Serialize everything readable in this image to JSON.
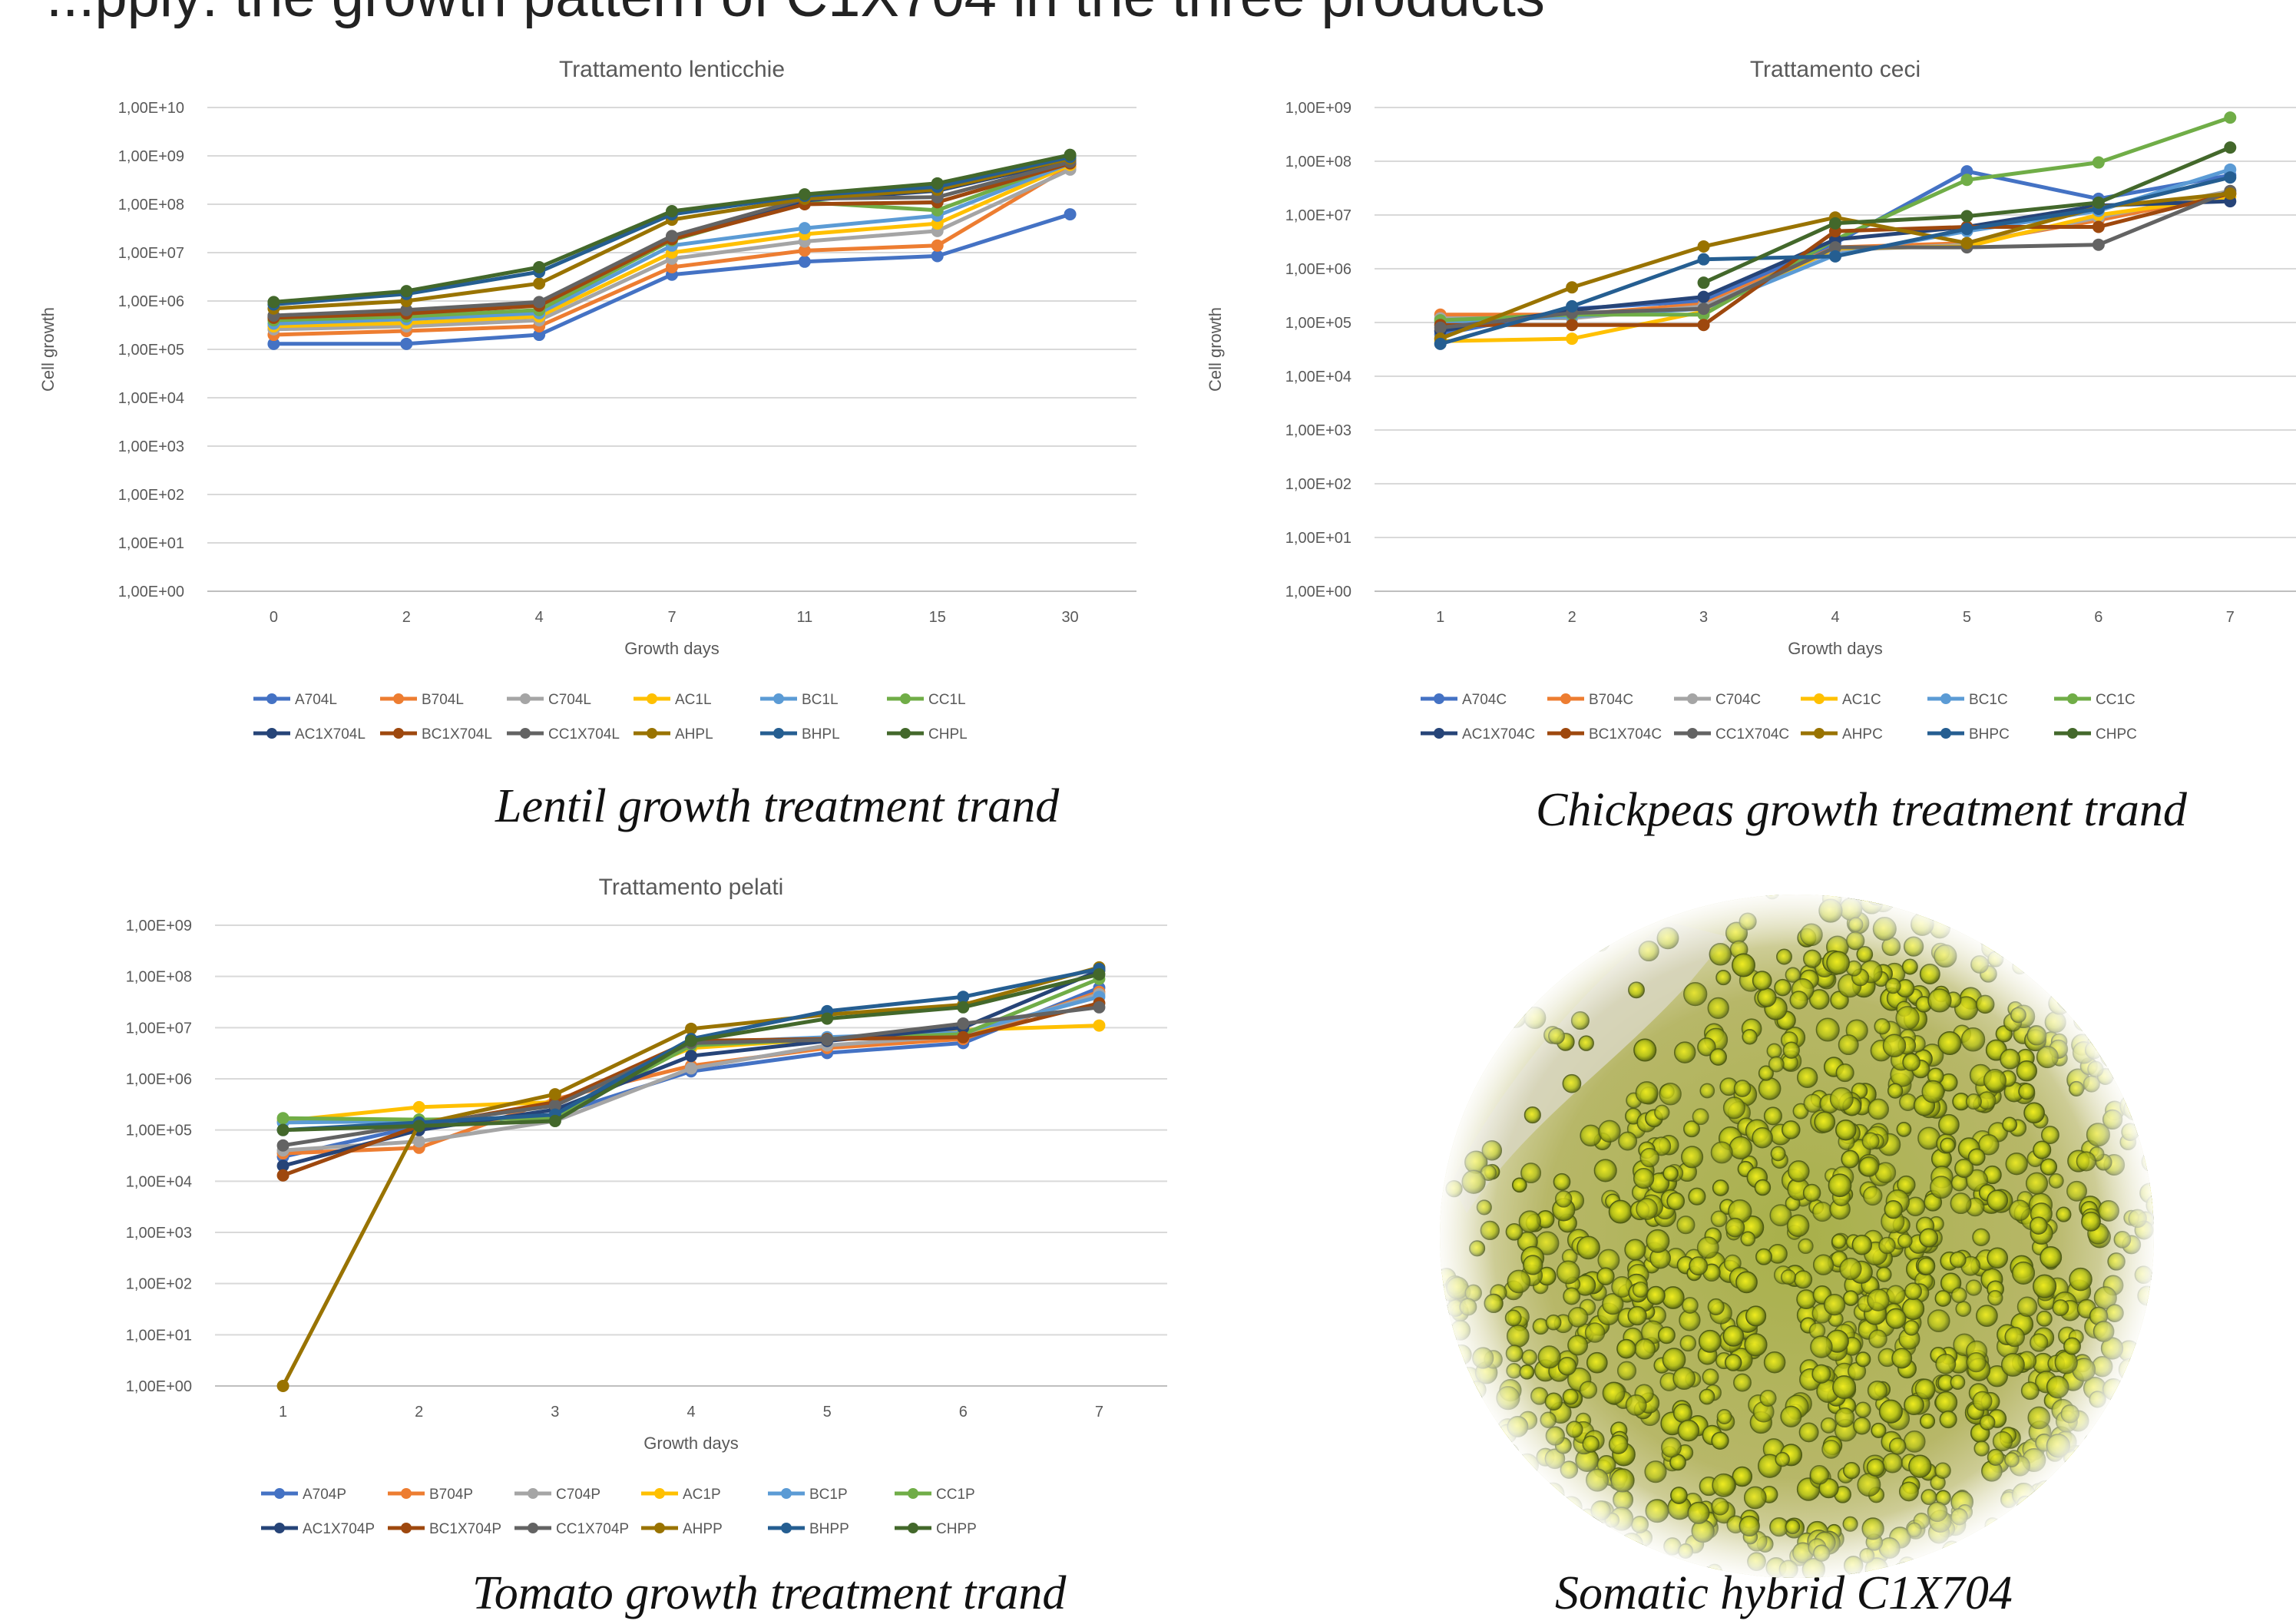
{
  "header": {
    "partial_title": "...pply: the growth pattern of C1X704 in the three products"
  },
  "captions": {
    "lentil": "Lentil growth treatment trand",
    "chickpeas": "Chickpeas growth treatment trand",
    "tomato": "Tomato growth treatment trand",
    "hybrid": "Somatic hybrid C1X704"
  },
  "palette": [
    "#4472c4",
    "#ed7d31",
    "#a5a5a5",
    "#ffc000",
    "#5b9bd5",
    "#70ad47",
    "#264478",
    "#9e480e",
    "#636363",
    "#997300",
    "#255e91",
    "#43682b"
  ],
  "chart_data": [
    {
      "id": "lentil",
      "type": "line",
      "title": "Trattamento lenticchie",
      "xlabel": "Growth days",
      "ylabel": "Cell growth",
      "y_scale": "log",
      "ylim": [
        1,
        10000000000
      ],
      "y_ticks": [
        "1,00E+00",
        "1,00E+01",
        "1,00E+02",
        "1,00E+03",
        "1,00E+04",
        "1,00E+05",
        "1,00E+06",
        "1,00E+07",
        "1,00E+08",
        "1,00E+09",
        "1,00E+10"
      ],
      "categories": [
        "0",
        "2",
        "4",
        "7",
        "11",
        "15",
        "30"
      ],
      "grid": true,
      "legend_position": "bottom",
      "series": [
        {
          "name": "A704L",
          "color": "#4472c4",
          "values": [
            130000,
            130000,
            200000,
            3500000,
            6500000,
            8500000,
            62000000
          ]
        },
        {
          "name": "B704L",
          "color": "#ed7d31",
          "values": [
            200000,
            240000,
            300000,
            5000000,
            11000000,
            14000000,
            600000000
          ]
        },
        {
          "name": "C704L",
          "color": "#a5a5a5",
          "values": [
            260000,
            300000,
            400000,
            7500000,
            17000000,
            28000000,
            520000000
          ]
        },
        {
          "name": "AC1L",
          "color": "#ffc000",
          "values": [
            300000,
            350000,
            480000,
            10000000,
            24000000,
            40000000,
            650000000
          ]
        },
        {
          "name": "BC1L",
          "color": "#5b9bd5",
          "values": [
            340000,
            420000,
            560000,
            14000000,
            32000000,
            58000000,
            700000000
          ]
        },
        {
          "name": "CC1L",
          "color": "#70ad47",
          "values": [
            400000,
            480000,
            650000,
            18000000,
            110000000,
            75000000,
            780000000
          ]
        },
        {
          "name": "AC1X704L",
          "color": "#264478",
          "values": [
            480000,
            600000,
            850000,
            20000000,
            120000000,
            190000000,
            820000000
          ]
        },
        {
          "name": "BC1X704L",
          "color": "#9e480e",
          "values": [
            450000,
            550000,
            800000,
            19000000,
            100000000,
            110000000,
            700000000
          ]
        },
        {
          "name": "CC1X704L",
          "color": "#636363",
          "values": [
            500000,
            650000,
            950000,
            22000000,
            130000000,
            140000000,
            750000000
          ]
        },
        {
          "name": "AHPL",
          "color": "#997300",
          "values": [
            700000,
            1000000,
            2300000,
            48000000,
            130000000,
            200000000,
            880000000
          ]
        },
        {
          "name": "BHPL",
          "color": "#255e91",
          "values": [
            850000,
            1400000,
            4000000,
            62000000,
            150000000,
            230000000,
            950000000
          ]
        },
        {
          "name": "CHPL",
          "color": "#43682b",
          "values": [
            950000,
            1600000,
            5000000,
            72000000,
            160000000,
            270000000,
            1050000000
          ]
        }
      ]
    },
    {
      "id": "chickpeas",
      "type": "line",
      "title": "Trattamento ceci",
      "xlabel": "Growth days",
      "ylabel": "Cell growth",
      "y_scale": "log",
      "ylim": [
        1,
        1000000000
      ],
      "y_ticks": [
        "1,00E+00",
        "1,00E+01",
        "1,00E+02",
        "1,00E+03",
        "1,00E+04",
        "1,00E+05",
        "1,00E+06",
        "1,00E+07",
        "1,00E+08",
        "1,00E+09"
      ],
      "categories": [
        "1",
        "2",
        "3",
        "4",
        "5",
        "6",
        "7"
      ],
      "grid": true,
      "legend_position": "bottom",
      "series": [
        {
          "name": "A704C",
          "color": "#4472c4",
          "values": [
            60000,
            180000,
            250000,
            3000000,
            65000000,
            20000000,
            55000000
          ]
        },
        {
          "name": "B704C",
          "color": "#ed7d31",
          "values": [
            140000,
            140000,
            220000,
            2500000,
            3000000,
            8000000,
            25000000
          ]
        },
        {
          "name": "C704C",
          "color": "#a5a5a5",
          "values": [
            120000,
            120000,
            200000,
            2200000,
            2800000,
            9000000,
            28000000
          ]
        },
        {
          "name": "AC1C",
          "color": "#ffc000",
          "values": [
            45000,
            50000,
            160000,
            2400000,
            2600000,
            10000000,
            22000000
          ]
        },
        {
          "name": "BC1C",
          "color": "#5b9bd5",
          "values": [
            100000,
            130000,
            180000,
            1800000,
            5000000,
            12000000,
            70000000
          ]
        },
        {
          "name": "CC1C",
          "color": "#70ad47",
          "values": [
            110000,
            140000,
            140000,
            3500000,
            45000000,
            95000000,
            650000000
          ]
        },
        {
          "name": "AC1X704C",
          "color": "#264478",
          "values": [
            70000,
            170000,
            300000,
            3500000,
            6000000,
            15000000,
            18000000
          ]
        },
        {
          "name": "BC1X704C",
          "color": "#9e480e",
          "values": [
            90000,
            90000,
            90000,
            5000000,
            6000000,
            6000000,
            25000000
          ]
        },
        {
          "name": "CC1X704C",
          "color": "#636363",
          "values": [
            80000,
            150000,
            180000,
            2500000,
            2500000,
            2800000,
            28000000
          ]
        },
        {
          "name": "AHPC",
          "color": "#997300",
          "values": [
            50000,
            450000,
            2600000,
            9000000,
            3000000,
            14000000,
            25000000
          ]
        },
        {
          "name": "BHPC",
          "color": "#255e91",
          "values": [
            40000,
            200000,
            1500000,
            1700000,
            5500000,
            13000000,
            50000000
          ]
        },
        {
          "name": "CHPC",
          "color": "#43682b",
          "values": [
            null,
            null,
            550000,
            7000000,
            9500000,
            17000000,
            180000000
          ]
        }
      ]
    },
    {
      "id": "tomato",
      "type": "line",
      "title": "Trattamento pelati",
      "xlabel": "Growth days",
      "ylabel": "Cell growth",
      "y_scale": "log",
      "ylim": [
        1,
        1000000000
      ],
      "y_ticks": [
        "1,00E+00",
        "1,00E+01",
        "1,00E+02",
        "1,00E+03",
        "1,00E+04",
        "1,00E+05",
        "1,00E+06",
        "1,00E+07",
        "1,00E+08",
        "1,00E+09"
      ],
      "categories": [
        "1",
        "2",
        "3",
        "4",
        "5",
        "6",
        "7"
      ],
      "grid": true,
      "legend_position": "bottom",
      "series": [
        {
          "name": "A704P",
          "color": "#4472c4",
          "values": [
            30000,
            120000,
            200000,
            1400000,
            3200000,
            5000000,
            60000000
          ]
        },
        {
          "name": "B704P",
          "color": "#ed7d31",
          "values": [
            35000,
            45000,
            400000,
            1800000,
            4000000,
            6000000,
            50000000
          ]
        },
        {
          "name": "C704P",
          "color": "#a5a5a5",
          "values": [
            40000,
            60000,
            150000,
            1600000,
            4500000,
            7000000,
            45000000
          ]
        },
        {
          "name": "AC1P",
          "color": "#ffc000",
          "values": [
            150000,
            280000,
            350000,
            4000000,
            6000000,
            9000000,
            11000000
          ]
        },
        {
          "name": "BC1P",
          "color": "#5b9bd5",
          "values": [
            140000,
            150000,
            180000,
            5000000,
            6500000,
            8000000,
            40000000
          ]
        },
        {
          "name": "CC1P",
          "color": "#70ad47",
          "values": [
            170000,
            160000,
            170000,
            4500000,
            6000000,
            7500000,
            90000000
          ]
        },
        {
          "name": "AC1X704P",
          "color": "#264478",
          "values": [
            20000,
            100000,
            250000,
            2800000,
            5500000,
            10000000,
            130000000
          ]
        },
        {
          "name": "BC1X704P",
          "color": "#9e480e",
          "values": [
            13000,
            120000,
            350000,
            5500000,
            6000000,
            6500000,
            30000000
          ]
        },
        {
          "name": "CC1X704P",
          "color": "#636363",
          "values": [
            50000,
            130000,
            300000,
            5000000,
            5800000,
            12000000,
            25000000
          ]
        },
        {
          "name": "AHPP",
          "color": "#997300",
          "values": [
            1,
            130000,
            500000,
            9500000,
            18000000,
            28000000,
            150000000
          ]
        },
        {
          "name": "BHPP",
          "color": "#255e91",
          "values": [
            100000,
            140000,
            200000,
            6000000,
            21000000,
            40000000,
            140000000
          ]
        },
        {
          "name": "CHPP",
          "color": "#43682b",
          "values": [
            100000,
            120000,
            150000,
            5500000,
            15000000,
            25000000,
            110000000
          ]
        }
      ]
    }
  ]
}
